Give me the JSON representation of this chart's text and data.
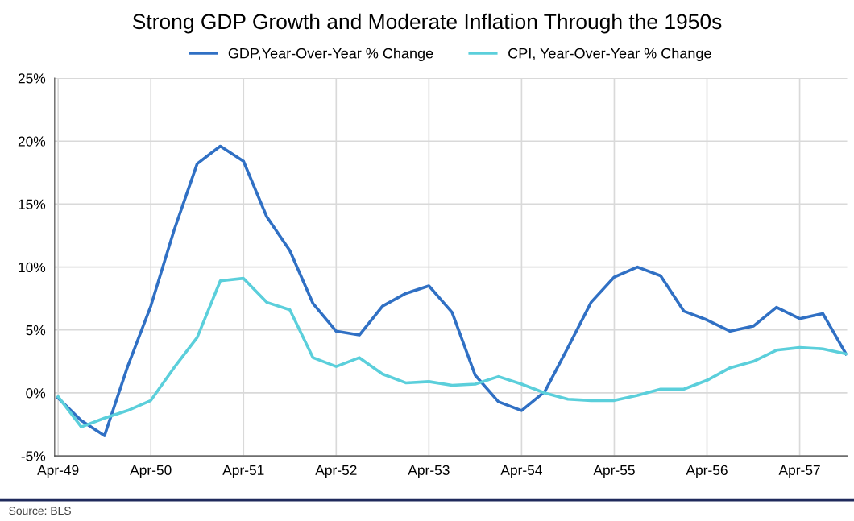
{
  "chart_data": {
    "type": "line",
    "title": "Strong GDP Growth and Moderate Inflation Through the 1950s",
    "categories": [
      "Apr-49",
      null,
      null,
      null,
      "Apr-50",
      null,
      null,
      null,
      "Apr-51",
      null,
      null,
      null,
      "Apr-52",
      null,
      null,
      null,
      "Apr-53",
      null,
      null,
      null,
      "Apr-54",
      null,
      null,
      null,
      "Apr-55",
      null,
      null,
      null,
      "Apr-56",
      null,
      null,
      null,
      "Apr-57",
      null,
      null
    ],
    "series": [
      {
        "name": "GDP,Year-Over-Year % Change",
        "color": "#3070c4",
        "values": [
          -0.4,
          -2.2,
          -3.4,
          2.1,
          6.9,
          12.9,
          18.2,
          19.6,
          18.4,
          14.0,
          11.3,
          7.1,
          4.9,
          4.6,
          6.9,
          7.9,
          8.5,
          6.4,
          1.4,
          -0.7,
          -1.4,
          0.1,
          3.6,
          7.2,
          9.2,
          10.0,
          9.3,
          6.5,
          5.8,
          4.9,
          5.3,
          6.8,
          5.9,
          6.3,
          3.1
        ]
      },
      {
        "name": "CPI, Year-Over-Year % Change",
        "color": "#5bcfdb",
        "values": [
          -0.3,
          -2.7,
          -2.0,
          -1.4,
          -0.6,
          2.0,
          4.4,
          8.9,
          9.1,
          7.2,
          6.6,
          2.8,
          2.1,
          2.8,
          1.5,
          0.8,
          0.9,
          0.6,
          0.7,
          1.3,
          0.7,
          0.0,
          -0.5,
          -0.6,
          -0.6,
          -0.2,
          0.3,
          0.3,
          1.0,
          2.0,
          2.5,
          3.4,
          3.6,
          3.5,
          3.1
        ]
      }
    ],
    "ylim": [
      -5,
      25
    ],
    "yticks": [
      {
        "value": -5,
        "label": "-5%"
      },
      {
        "value": 0,
        "label": "0%"
      },
      {
        "value": 5,
        "label": "5%"
      },
      {
        "value": 10,
        "label": "10%"
      },
      {
        "value": 15,
        "label": "15%"
      },
      {
        "value": 20,
        "label": "20%"
      },
      {
        "value": 25,
        "label": "25%"
      }
    ],
    "grid": true,
    "legend": "top",
    "marker": "none",
    "line_style": "solid",
    "annotations": [
      "Source: BLS"
    ]
  }
}
